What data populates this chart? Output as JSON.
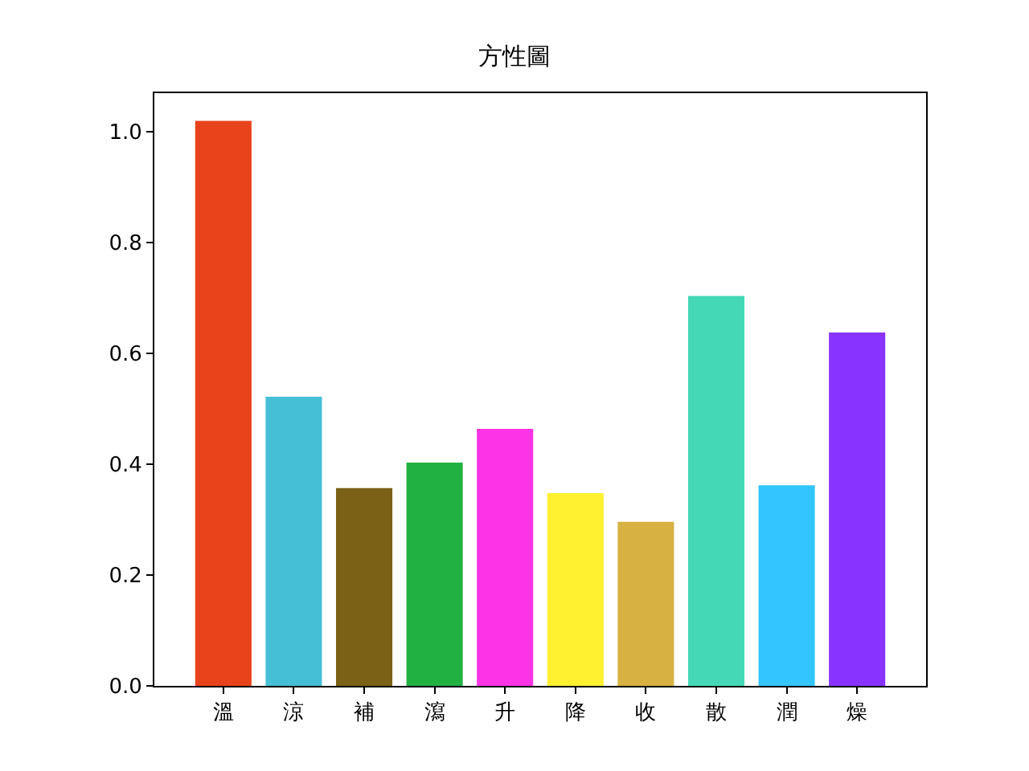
{
  "chart_data": {
    "type": "bar",
    "title": "方性圖",
    "categories": [
      "溫",
      "涼",
      "補",
      "瀉",
      "升",
      "降",
      "收",
      "散",
      "潤",
      "燥"
    ],
    "values": [
      1.02,
      0.522,
      0.357,
      0.403,
      0.464,
      0.348,
      0.296,
      0.704,
      0.362,
      0.638
    ],
    "colors": [
      "#e9431b",
      "#45bfd6",
      "#7a6116",
      "#20b140",
      "#fc33e6",
      "#fff030",
      "#d7b243",
      "#44d8b7",
      "#33c5ff",
      "#8833ff"
    ],
    "ylim": [
      0,
      1.07
    ],
    "yticks": [
      {
        "value": 0,
        "label": "0.0"
      },
      {
        "value": 0.2,
        "label": "0.2"
      },
      {
        "value": 0.4,
        "label": "0.4"
      },
      {
        "value": 0.6,
        "label": "0.6"
      },
      {
        "value": 0.8,
        "label": "0.8"
      },
      {
        "value": 1.0,
        "label": "1.0"
      }
    ]
  }
}
